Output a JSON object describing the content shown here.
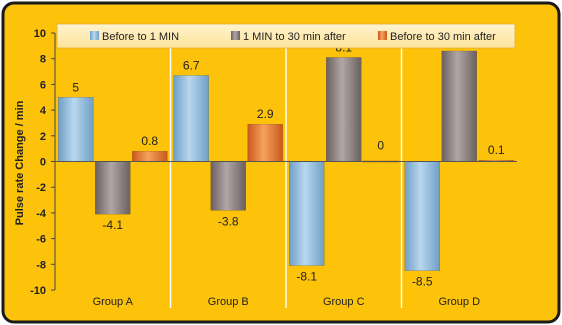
{
  "chart_data": {
    "type": "bar",
    "categories": [
      "Group A",
      "Group B",
      "Group C",
      "Group D"
    ],
    "series": [
      {
        "name": "Before to 1 MIN",
        "values": [
          5,
          6.7,
          -8.1,
          -8.5
        ],
        "labels": [
          "5",
          "6.7",
          "-8.1",
          "-8.5"
        ],
        "color": "#8fbddf"
      },
      {
        "name": "1 MIN to 30 min after",
        "values": [
          -4.1,
          -3.8,
          8.1,
          8.6
        ],
        "labels": [
          "-4.1",
          "-3.8",
          "8.1",
          "8.6"
        ],
        "color": "#8e8483"
      },
      {
        "name": "Before to 30 min after",
        "values": [
          0.8,
          2.9,
          0,
          0.1
        ],
        "labels": [
          "0.8",
          "2.9",
          "0",
          "0.1"
        ],
        "color": "#ef7f2e"
      }
    ],
    "ylabel": "Pulse rate Change / min",
    "ylim": [
      -10,
      10
    ],
    "yticks": [
      -10,
      -8,
      -6,
      -4,
      -2,
      0,
      2,
      4,
      6,
      8,
      10
    ],
    "ytick_labels": [
      "-10",
      "-8",
      "-6",
      "-4",
      "-2",
      "0",
      "2",
      "4",
      "6",
      "8",
      "10"
    ],
    "grid": false,
    "legend_position": "top",
    "background_color": "#fcc30a",
    "frame_color": "#1a1a1a"
  }
}
